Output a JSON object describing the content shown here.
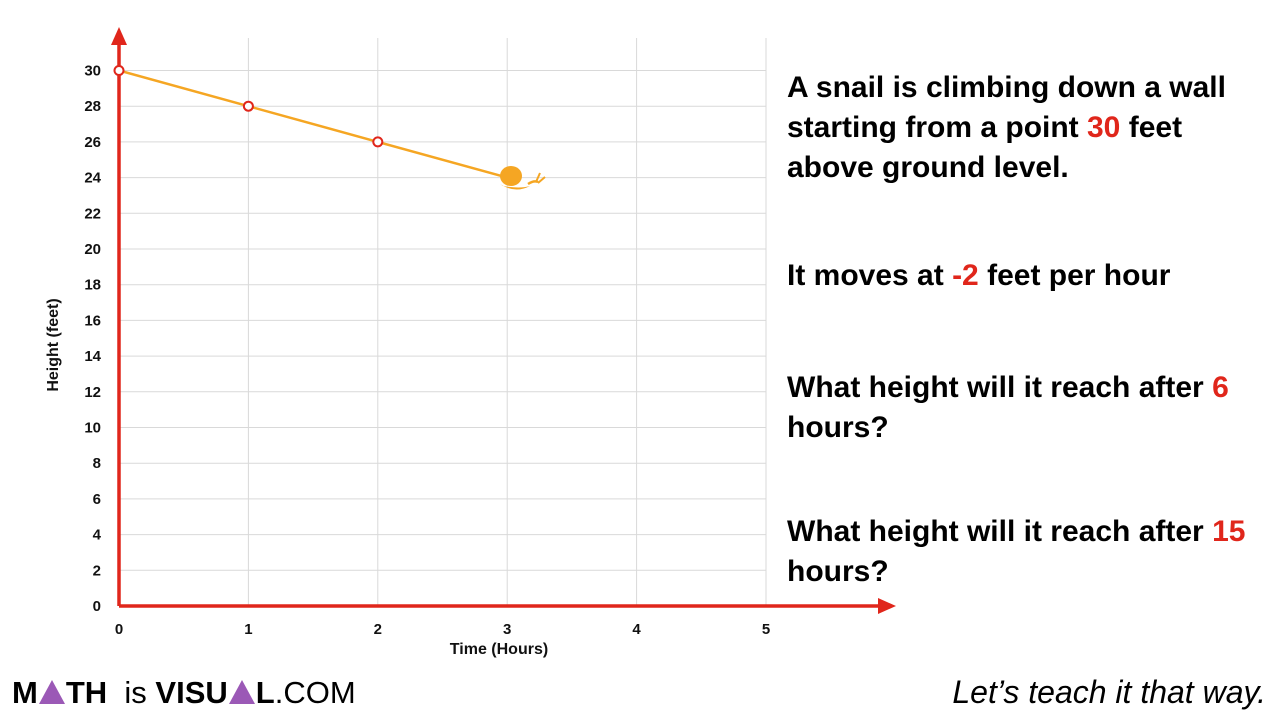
{
  "chart_data": {
    "type": "line",
    "xlabel": "Time (Hours)",
    "ylabel": "Height (feet)",
    "xlim": [
      0,
      6
    ],
    "ylim": [
      0,
      30
    ],
    "x_ticks": [
      "0",
      "1",
      "2",
      "3",
      "4",
      "5"
    ],
    "y_ticks": [
      "0",
      "2",
      "4",
      "6",
      "8",
      "10",
      "12",
      "14",
      "16",
      "18",
      "20",
      "22",
      "24",
      "26",
      "28",
      "30"
    ],
    "grid": true,
    "series": [
      {
        "x": [
          0,
          1,
          2,
          3
        ],
        "y": [
          30,
          28,
          26,
          24
        ],
        "color": "#f5a623",
        "markers_at": [
          0,
          1,
          2
        ]
      }
    ],
    "colors": {
      "axis": "#e0261b",
      "grid": "#d9d9d9",
      "line": "#f5a623",
      "marker": "#e0261b",
      "snail": "#f5a623"
    }
  },
  "text": {
    "q1": {
      "before": "A snail is climbing down a wall starting from a point ",
      "hl": "30",
      "after": " feet above ground level."
    },
    "q2": {
      "before": "It moves at ",
      "hl": "-2",
      "after": " feet per hour"
    },
    "q3": {
      "before": "What height will it reach after ",
      "hl": "6",
      "after": " hours?"
    },
    "q4": {
      "before": "What height will it reach after ",
      "hl": "15",
      "after": " hours?"
    }
  },
  "footer": {
    "logo": {
      "m": "M",
      "th": "TH",
      "is": "is",
      "v": "V",
      "isu": "ISU",
      "l": "L",
      "com": ".COM"
    },
    "tagline": "Let’s teach it that way."
  },
  "icons": {
    "snail": "snail-icon",
    "logo_triangle": "triangle-icon"
  }
}
